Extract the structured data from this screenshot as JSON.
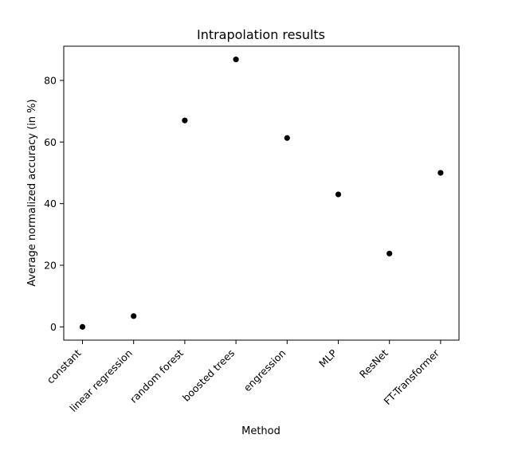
{
  "chart_data": {
    "type": "scatter",
    "title": "Intrapolation results",
    "xlabel": "Method",
    "ylabel": "Average normalized accuracy (in %)",
    "categories": [
      "constant",
      "linear regression",
      "random forest",
      "boosted trees",
      "engression",
      "MLP",
      "ResNet",
      "FT-Transformer"
    ],
    "series": [
      {
        "values": [
          0,
          3.5,
          67,
          86.8,
          61.3,
          43,
          23.8,
          50
        ]
      }
    ],
    "yticks": [
      0,
      20,
      40,
      60,
      80
    ],
    "ylim": [
      -4.3,
      91.1
    ],
    "grid": false,
    "legend": "none",
    "colors": {
      "marker": "#000000",
      "axis": "#000000",
      "background": "#ffffff"
    }
  }
}
